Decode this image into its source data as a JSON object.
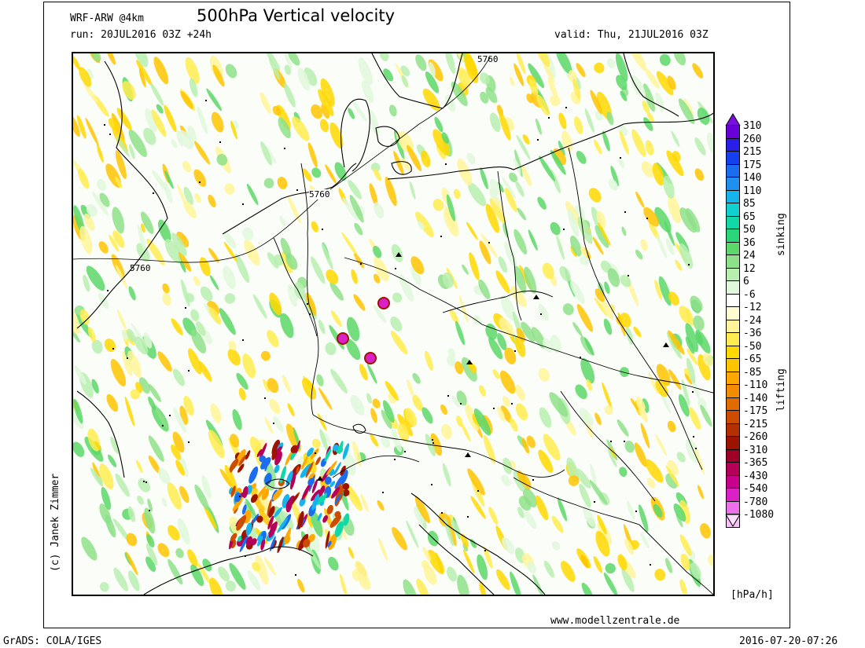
{
  "header": {
    "model": "WRF-ARW @4km",
    "title": "500hPa Vertical velocity",
    "run": "run: 20JUL2016 03Z +24h",
    "valid": "valid: Thu, 21JUL2016 03Z"
  },
  "map": {
    "contour_labels": [
      "5760",
      "5760",
      "5760"
    ]
  },
  "colorbar": {
    "ticks": [
      "310",
      "260",
      "215",
      "175",
      "140",
      "110",
      "85",
      "65",
      "50",
      "36",
      "24",
      "12",
      "6",
      "-6",
      "-12",
      "-24",
      "-36",
      "-50",
      "-65",
      "-85",
      "-110",
      "-140",
      "-175",
      "-215",
      "-260",
      "-310",
      "-365",
      "-430",
      "-540",
      "-780",
      "-1080"
    ],
    "colors": [
      "#6a00d8",
      "#2a1fe8",
      "#1540f0",
      "#1b6df0",
      "#1e90f0",
      "#14b4ec",
      "#10d0d0",
      "#12d8a8",
      "#2cd47a",
      "#5cd86a",
      "#8ee08a",
      "#b8eeb0",
      "#e0f8dc",
      "#ffffff",
      "#fffcd0",
      "#fff49a",
      "#ffec50",
      "#ffd800",
      "#ffc400",
      "#ffa800",
      "#f28c00",
      "#e06c00",
      "#cc4c00",
      "#b43000",
      "#9c1400",
      "#a00028",
      "#b40058",
      "#c8008c",
      "#dc20c8",
      "#ec70e8",
      "#f8c0f8"
    ],
    "top_color": "#7a10e0",
    "bottom_color": "#fde0fd",
    "label_sinking": "sinking",
    "label_lifting": "lifting",
    "units": "[hPa/h]"
  },
  "credits": {
    "author": "(c) Janek Zimmer",
    "website": "www.modellzentrale.de",
    "grads": "GrADS: COLA/IGES",
    "timestamp": "2016-07-20-07:26"
  }
}
